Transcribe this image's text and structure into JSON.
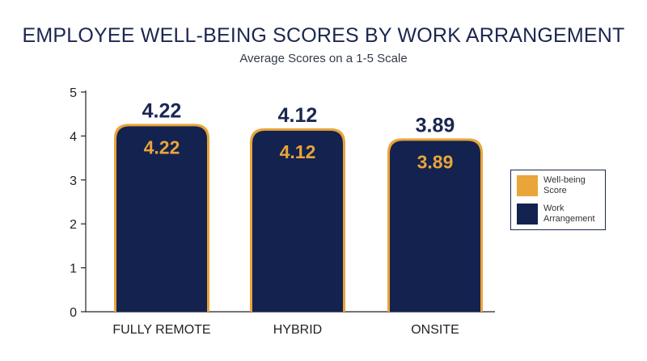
{
  "title": "EMPLOYEE WELL-BEING SCORES BY WORK ARRANGEMENT",
  "subtitle": "Average Scores on a 1-5 Scale",
  "colors": {
    "navy": "#13224f",
    "gold": "#e9a43a",
    "text": "#1b2650"
  },
  "legend": [
    {
      "label": "Well-being Score",
      "color": "#e9a43a"
    },
    {
      "label": "Work Arrangement",
      "color": "#13224f"
    }
  ],
  "chart_data": {
    "type": "bar",
    "categories": [
      "FULLY REMOTE",
      "HYBRID",
      "ONSITE"
    ],
    "series": [
      {
        "name": "Well-being Score",
        "values": [
          4.22,
          4.12,
          3.89
        ]
      },
      {
        "name": "Work Arrangement",
        "values": [
          4.22,
          4.12,
          3.89
        ]
      }
    ],
    "data_labels": [
      "4.22",
      "4.12",
      "3.89"
    ],
    "ylim": [
      0,
      5
    ],
    "yticks": [
      0,
      1,
      2,
      3,
      4,
      5
    ],
    "grid": false,
    "legend_position": "right"
  }
}
